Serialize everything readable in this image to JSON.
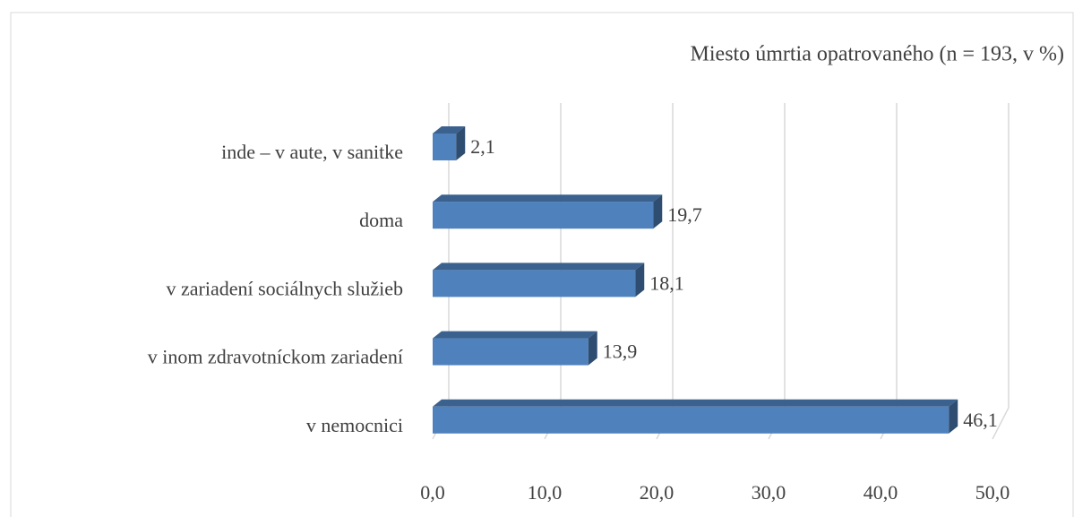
{
  "chart_data": {
    "type": "hbar3d",
    "title": "Miesto úmrtia opatrovaného (n = 193, v %)",
    "categories": [
      "inde – v aute, v sanitke",
      "doma",
      "v zariadení sociálnych služieb",
      "v inom zdravotníckom zariadení",
      "v nemocnici"
    ],
    "values": [
      2.1,
      19.7,
      18.1,
      13.9,
      46.1
    ],
    "value_labels": [
      "2,1",
      "19,7",
      "18,1",
      "13,9",
      "46,1"
    ],
    "color": "#4f81bd",
    "xlim": [
      0,
      50
    ],
    "xticks": [
      {
        "value": 0,
        "label": "0,0"
      },
      {
        "value": 10,
        "label": "10,0"
      },
      {
        "value": 20,
        "label": "20,0"
      },
      {
        "value": 30,
        "label": "30,0"
      },
      {
        "value": 40,
        "label": "40,0"
      },
      {
        "value": 50,
        "label": "50,0"
      }
    ],
    "grid": true
  }
}
